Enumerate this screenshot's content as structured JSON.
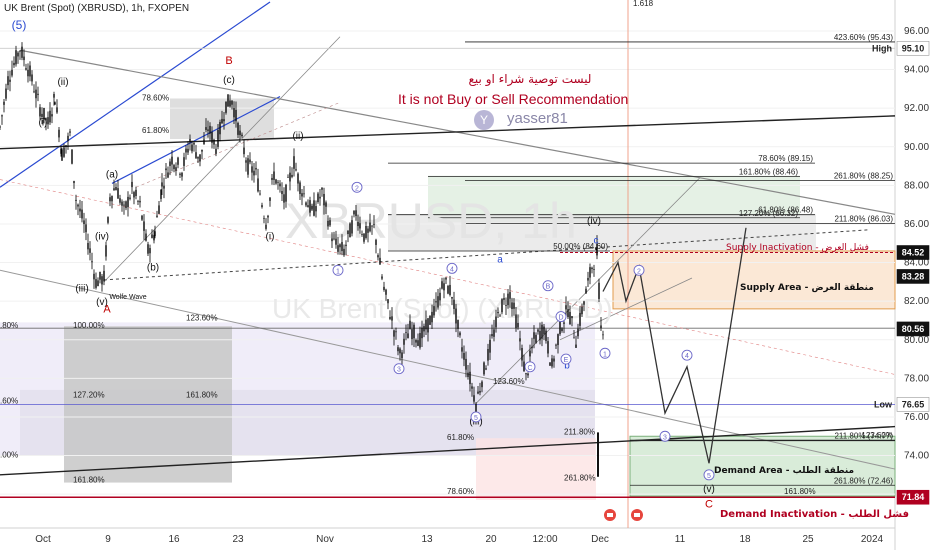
{
  "header": {
    "symbol_title": "UK Brent (Spot) (XBRUSD), 1h, FXOPEN"
  },
  "watermark": {
    "main": "XBRUSD, 1h",
    "sub": "UK Brent (Spot) (XBRUSD)"
  },
  "disclaimer": {
    "arabic": "ليست توصية شراء او بيع",
    "english": "It is not Buy or Sell Recommendation",
    "author": "yasser81"
  },
  "colors": {
    "background": "#ffffff",
    "candle": "#000000",
    "trendline": "#2a4ad1",
    "channel": "#888888",
    "supply_zone": "#fbe8d6",
    "demand_zone": "#d9ecd9",
    "fib_zone": "#e0efe0",
    "inactivation_red": "#b00020",
    "badge_dark": "#111111"
  },
  "chart_data": {
    "type": "candlestick",
    "x_ticks": [
      {
        "i": 43,
        "label": "Oct"
      },
      {
        "i": 108,
        "label": "9"
      },
      {
        "i": 174,
        "label": "16"
      },
      {
        "i": 238,
        "label": "23"
      },
      {
        "i": 325,
        "label": "Nov"
      },
      {
        "i": 427,
        "label": "13"
      },
      {
        "i": 491,
        "label": "20"
      },
      {
        "i": 545,
        "label": "12:00"
      },
      {
        "i": 600,
        "label": "Dec"
      },
      {
        "i": 680,
        "label": "11"
      },
      {
        "i": 745,
        "label": "18"
      },
      {
        "i": 808,
        "label": "25"
      },
      {
        "i": 872,
        "label": "2024"
      }
    ],
    "y_axis": {
      "min": 70.6,
      "max": 97.5,
      "ticks": [
        96,
        94,
        92,
        90,
        88,
        86,
        84,
        82,
        80,
        78,
        76,
        74,
        72
      ],
      "tick_labels": [
        "96.00",
        "94.00",
        "92.00",
        "90.00",
        "88.00",
        "86.00",
        "84.00",
        "82.00",
        "80.00",
        "78.00",
        "76.00",
        "74.00",
        "72.00"
      ]
    },
    "price_path": [
      [
        0,
        91.0
      ],
      [
        8,
        93.5
      ],
      [
        20,
        95.1
      ],
      [
        30,
        93.8
      ],
      [
        40,
        92.0
      ],
      [
        48,
        91.2
      ],
      [
        55,
        92.6
      ],
      [
        62,
        89.6
      ],
      [
        70,
        90.6
      ],
      [
        76,
        87.3
      ],
      [
        84,
        86.0
      ],
      [
        90,
        84.6
      ],
      [
        96,
        83.0
      ],
      [
        104,
        83.2
      ],
      [
        110,
        87.4
      ],
      [
        116,
        88.0
      ],
      [
        124,
        86.6
      ],
      [
        132,
        87.8
      ],
      [
        140,
        86.9
      ],
      [
        148,
        84.6
      ],
      [
        155,
        85.6
      ],
      [
        162,
        88.0
      ],
      [
        172,
        89.4
      ],
      [
        182,
        88.8
      ],
      [
        190,
        90.3
      ],
      [
        200,
        89.4
      ],
      [
        208,
        91.0
      ],
      [
        216,
        90.0
      ],
      [
        226,
        92.2
      ],
      [
        232,
        92.4
      ],
      [
        240,
        90.6
      ],
      [
        248,
        89.0
      ],
      [
        256,
        88.6
      ],
      [
        266,
        86.1
      ],
      [
        274,
        88.6
      ],
      [
        284,
        87.2
      ],
      [
        294,
        89.2
      ],
      [
        300,
        88.0
      ],
      [
        312,
        86.6
      ],
      [
        322,
        87.6
      ],
      [
        334,
        85.0
      ],
      [
        344,
        84.6
      ],
      [
        356,
        86.6
      ],
      [
        364,
        85.4
      ],
      [
        374,
        85.8
      ],
      [
        384,
        82.6
      ],
      [
        392,
        81.0
      ],
      [
        400,
        79.2
      ],
      [
        410,
        80.6
      ],
      [
        420,
        80.0
      ],
      [
        434,
        81.4
      ],
      [
        444,
        83.0
      ],
      [
        452,
        82.4
      ],
      [
        460,
        80.0
      ],
      [
        468,
        78.4
      ],
      [
        476,
        76.7
      ],
      [
        484,
        78.4
      ],
      [
        492,
        80.0
      ],
      [
        500,
        81.6
      ],
      [
        510,
        82.4
      ],
      [
        518,
        80.6
      ],
      [
        526,
        78.0
      ],
      [
        534,
        80.0
      ],
      [
        544,
        80.6
      ],
      [
        552,
        78.6
      ],
      [
        560,
        80.6
      ],
      [
        568,
        81.6
      ],
      [
        576,
        80.0
      ],
      [
        584,
        82.0
      ],
      [
        592,
        83.8
      ],
      [
        597,
        84.52
      ],
      [
        601,
        80.6
      ],
      [
        604,
        80.7
      ]
    ],
    "price_badges": [
      {
        "label": "High",
        "price": 95.1,
        "value": "95.10",
        "bg": "#ffffff",
        "fg": "#222222"
      },
      {
        "label": "",
        "price": 84.52,
        "value": "84.52",
        "bg": "#111111",
        "fg": "#ffffff"
      },
      {
        "label": "",
        "price": 83.28,
        "value": "83.28",
        "bg": "#111111",
        "fg": "#ffffff"
      },
      {
        "label": "",
        "price": 80.56,
        "value": "80.56",
        "bg": "#111111",
        "fg": "#ffffff"
      },
      {
        "label": "Low",
        "price": 76.65,
        "value": "76.65",
        "bg": "#ffffff",
        "fg": "#222222"
      },
      {
        "label": "",
        "price": 71.84,
        "value": "71.84",
        "bg": "#b00020",
        "fg": "#ffffff"
      }
    ],
    "fib_levels": [
      {
        "label": "423.60% (95.43)",
        "price": 95.43,
        "x1": 465,
        "x2": 895
      },
      {
        "label": "78.60% (89.15)",
        "price": 89.15,
        "x1": 388,
        "x2": 815
      },
      {
        "label": "61.80% (86.48)",
        "price": 86.48,
        "x1": 388,
        "x2": 815
      },
      {
        "label": "50.00% (84.60)",
        "price": 84.6,
        "x1": 388,
        "x2": 610
      },
      {
        "label": "261.80% (88.25)",
        "price": 88.25,
        "x1": 465,
        "x2": 895
      },
      {
        "label": "211.80% (86.03)",
        "price": 86.03,
        "x1": 465,
        "x2": 895
      },
      {
        "label": "161.80% (88.46)",
        "price": 88.46,
        "x1": 428,
        "x2": 800
      },
      {
        "label": "127.20% (86.32)",
        "price": 86.32,
        "x1": 428,
        "x2": 800
      },
      {
        "label": "211.80% (74.77)",
        "price": 74.77,
        "x1": 630,
        "x2": 895
      },
      {
        "label": "123.60%",
        "price": 74.8,
        "x1": 630,
        "x2": 895
      },
      {
        "label": "261.80% (72.46)",
        "price": 72.46,
        "x1": 630,
        "x2": 895
      }
    ],
    "left_fib_labels": [
      {
        "label": "78.60%",
        "price": 92.3,
        "x": 142
      },
      {
        "label": "61.80%",
        "price": 90.6,
        "x": 142
      },
      {
        "label": "123.60%",
        "price": 80.9,
        "x": 186
      },
      {
        "label": "100.00%",
        "price": 80.5,
        "x": 73
      },
      {
        "label": "127.20%",
        "price": 76.9,
        "x": 73
      },
      {
        "label": "161.80%",
        "price": 76.9,
        "x": 186
      },
      {
        "label": "161.80%",
        "price": 72.5,
        "x": 73
      },
      {
        "label": "123.60%",
        "price": 77.6,
        "x": 493
      },
      {
        "label": "211.80%",
        "price": 75.0,
        "x": 564
      },
      {
        "label": "261.80%",
        "price": 72.6,
        "x": 564
      },
      {
        "label": "61.80%",
        "price": 74.7,
        "x": 447
      },
      {
        "label": "78.60%",
        "price": 71.9,
        "x": 447
      },
      {
        "label": "161.80%",
        "price": 71.9,
        "x": 784
      },
      {
        "label": "1.618",
        "price": 97.2,
        "x": 633
      },
      {
        "label": ".80%",
        "price": 80.5,
        "x": 0
      },
      {
        "label": ".60%",
        "price": 76.6,
        "x": 0
      },
      {
        "label": ".00%",
        "price": 73.8,
        "x": 0
      }
    ],
    "wave_labels": [
      {
        "label": "(5)",
        "i": 19,
        "price": 96.1,
        "color": "#2a4ad1",
        "size": 12
      },
      {
        "label": "(ii)",
        "i": 63,
        "price": 93.2,
        "color": "#111",
        "size": 10
      },
      {
        "label": "(i)",
        "i": 43,
        "price": 91.1,
        "color": "#111",
        "size": 10
      },
      {
        "label": "(a)",
        "i": 112,
        "price": 88.4,
        "color": "#111",
        "size": 10
      },
      {
        "label": "(iv)",
        "i": 102,
        "price": 85.2,
        "color": "#111",
        "size": 10
      },
      {
        "label": "(b)",
        "i": 153,
        "price": 83.6,
        "color": "#111",
        "size": 10
      },
      {
        "label": "(iii)",
        "i": 82,
        "price": 82.5,
        "color": "#111",
        "size": 10
      },
      {
        "label": "(v)",
        "i": 102,
        "price": 81.8,
        "color": "#111",
        "size": 10
      },
      {
        "label": "A",
        "i": 107,
        "price": 81.4,
        "color": "#c00000",
        "size": 11
      },
      {
        "label": "B",
        "i": 229,
        "price": 94.3,
        "color": "#c00000",
        "size": 11
      },
      {
        "label": "(c)",
        "i": 229,
        "price": 93.3,
        "color": "#111",
        "size": 10
      },
      {
        "label": "(ii)",
        "i": 298,
        "price": 90.4,
        "color": "#111",
        "size": 10
      },
      {
        "label": "(i)",
        "i": 270,
        "price": 85.2,
        "color": "#111",
        "size": 10
      },
      {
        "label": "(iii)",
        "i": 476,
        "price": 75.6,
        "color": "#111",
        "size": 10
      },
      {
        "label": "(iv)",
        "i": 594,
        "price": 86.0,
        "color": "#111",
        "size": 10
      },
      {
        "label": "c",
        "i": 596,
        "price": 85.0,
        "color": "#2a4ad1",
        "size": 10
      },
      {
        "label": "a",
        "i": 500,
        "price": 84.0,
        "color": "#2a4ad1",
        "size": 10
      },
      {
        "label": "b",
        "i": 567,
        "price": 78.5,
        "color": "#2a4ad1",
        "size": 10
      },
      {
        "label": "(v)",
        "i": 709,
        "price": 72.1,
        "color": "#111",
        "size": 10
      },
      {
        "label": "C",
        "i": 709,
        "price": 71.3,
        "color": "#c00000",
        "size": 11
      },
      {
        "label": "Wolfe Wave",
        "i": 128,
        "price": 82.1,
        "color": "#111",
        "size": 7
      }
    ],
    "circle_labels": [
      {
        "label": "2",
        "i": 357,
        "price": 87.9
      },
      {
        "label": "1",
        "i": 338,
        "price": 83.6
      },
      {
        "label": "3",
        "i": 399,
        "price": 78.5
      },
      {
        "label": "4",
        "i": 452,
        "price": 83.7
      },
      {
        "label": "5",
        "i": 476,
        "price": 76.0
      },
      {
        "label": "B",
        "i": 548,
        "price": 82.8
      },
      {
        "label": "D",
        "i": 561,
        "price": 81.2
      },
      {
        "label": "C",
        "i": 530,
        "price": 78.6
      },
      {
        "label": "E",
        "i": 566,
        "price": 79.0
      },
      {
        "label": "1",
        "i": 605,
        "price": 79.3
      },
      {
        "label": "2",
        "i": 639,
        "price": 83.6
      },
      {
        "label": "3",
        "i": 665,
        "price": 75.0
      },
      {
        "label": "4",
        "i": 687,
        "price": 79.2
      },
      {
        "label": "5",
        "i": 709,
        "price": 73.0
      }
    ],
    "zones": {
      "supply_label": "Supply Area - منطقة العرض",
      "supply_inactivation": "Supply Inactivation - فشل العرض",
      "demand_label": "Demand Area - منطقة الطلب",
      "demand_inactivation": "Demand Inactivation - فشل الطلب"
    }
  }
}
